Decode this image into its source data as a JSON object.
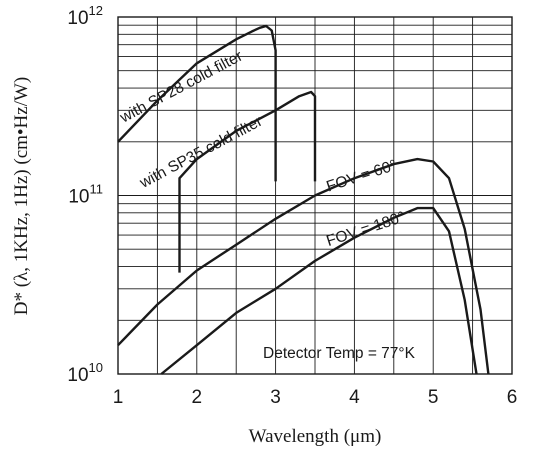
{
  "chart_data": {
    "type": "line",
    "xlabel": "Wavelength (μm)",
    "ylabel": "D* (λ, 1KHz, 1Hz)  (cm•Hz/W)",
    "xlim": [
      1,
      6
    ],
    "ylim": [
      10000000000.0,
      1000000000000.0
    ],
    "y_scale": "log",
    "grid": true,
    "x_ticks": [
      "1",
      "2",
      "3",
      "4",
      "5",
      "6"
    ],
    "y_ticks": [
      {
        "value": 10000000000.0,
        "base": "10",
        "exp": "10"
      },
      {
        "value": 100000000000.0,
        "base": "10",
        "exp": "11"
      },
      {
        "value": 1000000000000.0,
        "base": "10",
        "exp": "12"
      }
    ],
    "series": [
      {
        "name": "with SP28 cold filter",
        "x": [
          1.0,
          1.5,
          2.0,
          2.5,
          2.7,
          2.8,
          2.88,
          2.95,
          3.0,
          3.0
        ],
        "y": [
          200000000000.0,
          340000000000.0,
          550000000000.0,
          750000000000.0,
          830000000000.0,
          870000000000.0,
          890000000000.0,
          840000000000.0,
          650000000000.0,
          120000000000.0
        ]
      },
      {
        "name": "with SP35 cold filter",
        "x": [
          1.78,
          1.78,
          2.0,
          2.5,
          3.0,
          3.3,
          3.45,
          3.5,
          3.5
        ],
        "y": [
          37000000000.0,
          125000000000.0,
          160000000000.0,
          230000000000.0,
          300000000000.0,
          360000000000.0,
          380000000000.0,
          360000000000.0,
          120000000000.0
        ]
      },
      {
        "name": "FOV = 60°",
        "x": [
          1.0,
          1.5,
          2.0,
          2.5,
          3.0,
          3.5,
          4.0,
          4.5,
          4.8,
          5.0,
          5.2,
          5.4,
          5.6,
          5.7
        ],
        "y": [
          14500000000.0,
          24500000000.0,
          38000000000.0,
          53000000000.0,
          74000000000.0,
          100000000000.0,
          125000000000.0,
          150000000000.0,
          160000000000.0,
          155000000000.0,
          125000000000.0,
          65000000000.0,
          23000000000.0,
          10000000000.0
        ]
      },
      {
        "name": "FOV = 180°",
        "x": [
          1.55,
          2.0,
          2.5,
          3.0,
          3.5,
          4.0,
          4.5,
          4.8,
          5.0,
          5.2,
          5.4,
          5.55
        ],
        "y": [
          10000000000.0,
          14500000000.0,
          22000000000.0,
          30000000000.0,
          43000000000.0,
          58000000000.0,
          75000000000.0,
          85000000000.0,
          85000000000.0,
          63000000000.0,
          26000000000.0,
          10000000000.0
        ]
      }
    ],
    "annotations": [
      "Detector Temp = 77°K"
    ]
  }
}
